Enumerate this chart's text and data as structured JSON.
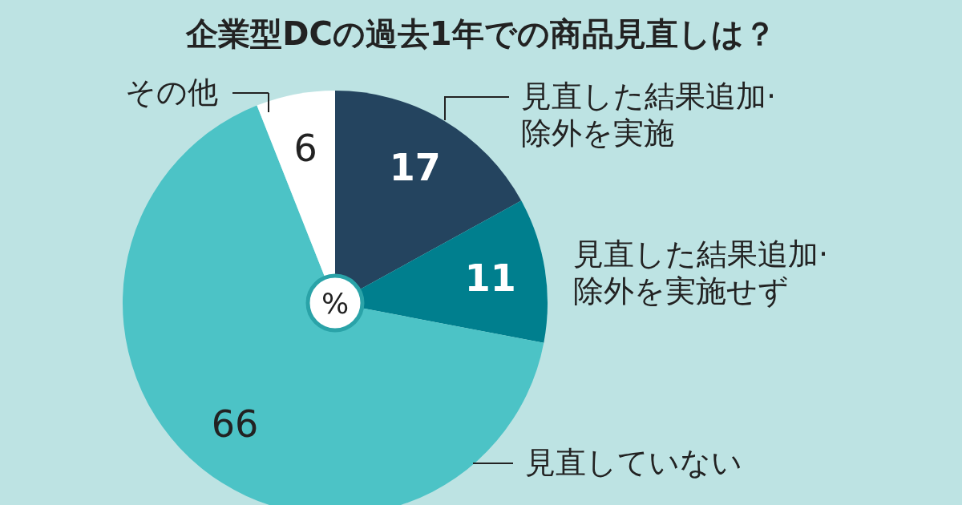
{
  "chart_data": {
    "type": "pie",
    "title": "企業型DCの過去1年での商品見直しは？",
    "categories": [
      "見直した結果追加·除外を実施",
      "見直した結果追加·除外を実施せず",
      "見直していない",
      "その他"
    ],
    "values": [
      17,
      11,
      66,
      6
    ],
    "colors": [
      "#24445f",
      "#007f8e",
      "#4cc3c6",
      "#ffffff"
    ],
    "data_labels": true,
    "legend": false,
    "annotations": [
      "%"
    ]
  }
}
